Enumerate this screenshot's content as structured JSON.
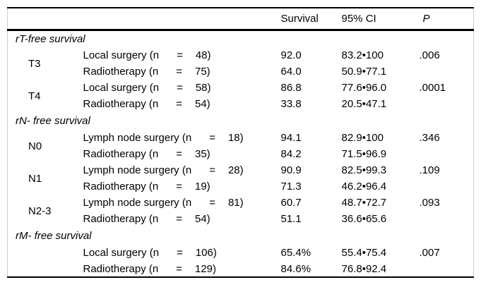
{
  "header": {
    "col_survival": "Survival",
    "col_ci": "95% CI",
    "col_p": "P"
  },
  "sections": [
    {
      "title": "rT-free survival",
      "groups": [
        {
          "label": "T3",
          "rows": [
            {
              "t": "Local surgery (n",
              "eq": "=",
              "n": "48)",
              "survival": "92.0",
              "ci": "83.2•100",
              "p": ".006"
            },
            {
              "t": "Radiotherapy (n",
              "eq": "=",
              "n": "75)",
              "survival": "64.0",
              "ci": "50.9•77.1",
              "p": ""
            }
          ]
        },
        {
          "label": "T4",
          "rows": [
            {
              "t": "Local surgery (n",
              "eq": "=",
              "n": "58)",
              "survival": "86.8",
              "ci": "77.6•96.0",
              "p": ".0001"
            },
            {
              "t": "Radiotherapy (n",
              "eq": "=",
              "n": "54)",
              "survival": "33.8",
              "ci": "20.5•47.1",
              "p": ""
            }
          ]
        }
      ]
    },
    {
      "title": "rN- free survival",
      "groups": [
        {
          "label": "N0",
          "rows": [
            {
              "t": "Lymph node surgery (n",
              "eq": "=",
              "n": "18)",
              "survival": "94.1",
              "ci": "82.9•100",
              "p": ".346"
            },
            {
              "t": "Radiotherapy (n",
              "eq": "=",
              "n": "35)",
              "survival": "84.2",
              "ci": "71.5•96.9",
              "p": ""
            }
          ]
        },
        {
          "label": "N1",
          "rows": [
            {
              "t": "Lymph node surgery (n",
              "eq": "=",
              "n": "28)",
              "survival": "90.9",
              "ci": "82.5•99.3",
              "p": ".109"
            },
            {
              "t": "Radiotherapy (n",
              "eq": "=",
              "n": "19)",
              "survival": "71.3",
              "ci": "46.2•96.4",
              "p": ""
            }
          ]
        },
        {
          "label": "N2-3",
          "rows": [
            {
              "t": "Lymph node surgery (n",
              "eq": "=",
              "n": "81)",
              "survival": "60.7",
              "ci": "48.7•72.7",
              "p": ".093"
            },
            {
              "t": "Radiotherapy (n",
              "eq": "=",
              "n": "54)",
              "survival": "51.1",
              "ci": "36.6•65.6",
              "p": ""
            }
          ]
        }
      ]
    },
    {
      "title": "rM- free survival",
      "groups": [
        {
          "label": "",
          "rows": [
            {
              "t": "Local surgery (n",
              "eq": "=",
              "n": "106)",
              "survival": "65.4%",
              "ci": "55.4•75.4",
              "p": ".007"
            },
            {
              "t": "Radiotherapy (n",
              "eq": "=",
              "n": "129)",
              "survival": "84.6%",
              "ci": "76.8•92.4",
              "p": ""
            }
          ]
        }
      ]
    }
  ],
  "colors": {
    "rule": "#000000",
    "side_border": "#cfcfcf",
    "text": "#000000",
    "background": "#ffffff"
  }
}
